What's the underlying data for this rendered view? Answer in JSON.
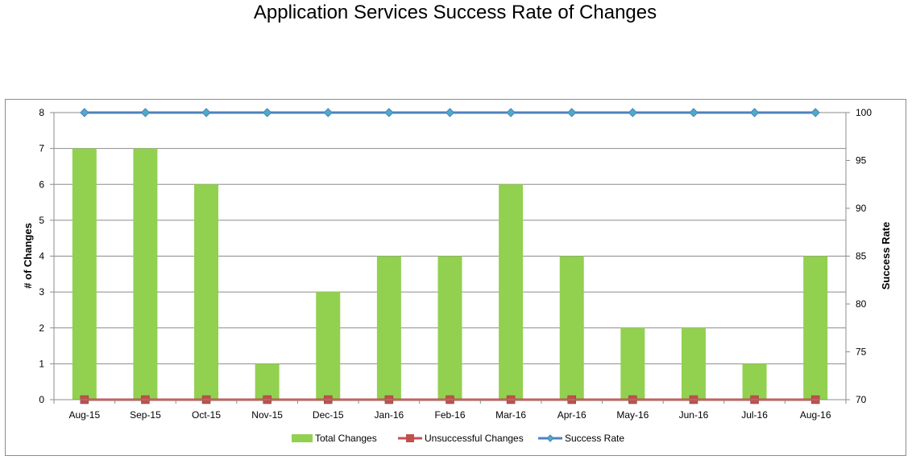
{
  "title": "Application Services Success Rate of Changes",
  "chart_data": {
    "type": "bar",
    "title": "Application Services Success Rate of Changes",
    "categories": [
      "Aug-15",
      "Sep-15",
      "Oct-15",
      "Nov-15",
      "Dec-15",
      "Jan-16",
      "Feb-16",
      "Mar-16",
      "Apr-16",
      "May-16",
      "Jun-16",
      "Jul-16",
      "Aug-16"
    ],
    "series": [
      {
        "name": "Total Changes",
        "type": "bar",
        "axis": "left",
        "color": "#92d050",
        "values": [
          7,
          7,
          6,
          1,
          3,
          4,
          4,
          6,
          4,
          2,
          2,
          1,
          4
        ]
      },
      {
        "name": "Unsuccessful Changes",
        "type": "line",
        "marker": "square",
        "axis": "left",
        "color": "#c0504d",
        "values": [
          0,
          0,
          0,
          0,
          0,
          0,
          0,
          0,
          0,
          0,
          0,
          0,
          0
        ]
      },
      {
        "name": "Success Rate",
        "type": "line",
        "marker": "diamond",
        "axis": "right",
        "color": "#4f81bd",
        "values": [
          100,
          100,
          100,
          100,
          100,
          100,
          100,
          100,
          100,
          100,
          100,
          100,
          100
        ]
      }
    ],
    "ylabel": "# of Changes",
    "ylim": [
      0,
      8
    ],
    "yticks": [
      "0",
      "1",
      "2",
      "3",
      "4",
      "5",
      "6",
      "7",
      "8"
    ],
    "y2label": "Success Rate",
    "y2lim": [
      70,
      100
    ],
    "y2ticks": [
      "70",
      "75",
      "80",
      "85",
      "90",
      "95",
      "100"
    ],
    "grid": true,
    "legend_position": "bottom"
  }
}
